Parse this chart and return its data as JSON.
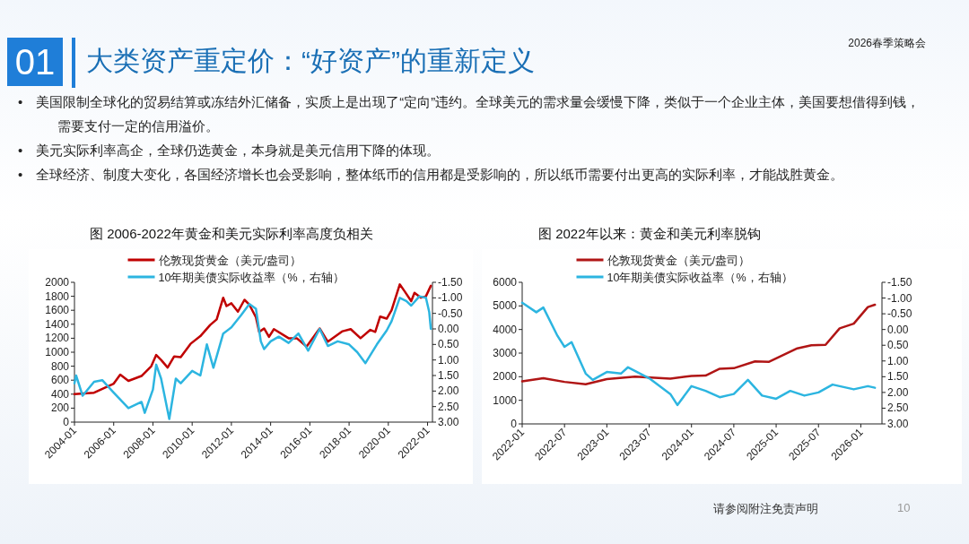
{
  "chart_data": [
    {
      "type": "other",
      "title": "大类资产重定价：“好资产”的重新定义",
      "annotations": [
        "01",
        "2026春季策略会",
        "•　美国限制全球化的贸易结算或冻结外汇储备，实质上是出现了“定向”违约。全球美元的需求量会缓慢下降，类似于一个企业主体，美国要想借得到钱，需要支付一定的信用溢价。",
        "•　美元实际利率高企，全球仍选黄金，本身就是美元信用下降的体现。",
        "•　全球经济、制度大变化，各国经济增长也会受影响，整体纸币的信用都是受影响的，所以纸币需要付出更高的实际利率，才能战胜黄金。",
        "请参阅附注免责声明",
        "10"
      ]
    },
    {
      "type": "line",
      "title": "图 2006-2022年黄金和美元实际利率高度负相关",
      "legend": "top",
      "xlim": [
        "2004-01",
        "2022-04"
      ],
      "xticks": [
        "2004-01",
        "2006-01",
        "2008-01",
        "2010-01",
        "2012-01",
        "2014-01",
        "2016-01",
        "2018-01",
        "2020-01",
        "2022-01"
      ],
      "ylim": [
        0,
        2000
      ],
      "yticks": [
        0,
        200,
        400,
        600,
        800,
        1000,
        1200,
        1400,
        1600,
        1800,
        2000
      ],
      "y2lim": [
        3,
        -1.5
      ],
      "y2ticks": [
        {
          "value": -1.5,
          "label": "-1.50"
        },
        {
          "value": -1,
          "label": "-1.00"
        },
        {
          "value": -0.5,
          "label": "-0.50"
        },
        {
          "value": 0,
          "label": "0.00"
        },
        {
          "value": 0.5,
          "label": "0.50"
        },
        {
          "value": 1,
          "label": "1.00"
        },
        {
          "value": 1.5,
          "label": "1.50"
        },
        {
          "value": 2,
          "label": "2.00"
        },
        {
          "value": 2.5,
          "label": "2.50"
        },
        {
          "value": 3,
          "label": "3.00"
        }
      ],
      "series": [
        {
          "name": "伦敦现货黄金（美元/盎司）",
          "color": "#c00000",
          "x": [
            "2004-01",
            "2005-01",
            "2006-01",
            "2006-05",
            "2006-10",
            "2007-06",
            "2007-12",
            "2008-03",
            "2008-06",
            "2008-10",
            "2009-02",
            "2009-06",
            "2009-12",
            "2010-06",
            "2010-12",
            "2011-04",
            "2011-08",
            "2011-10",
            "2012-01",
            "2012-05",
            "2012-09",
            "2012-12",
            "2013-04",
            "2013-06",
            "2013-09",
            "2013-12",
            "2014-03",
            "2014-12",
            "2015-05",
            "2015-11",
            "2016-07",
            "2016-12",
            "2017-09",
            "2018-02",
            "2018-08",
            "2019-02",
            "2019-05",
            "2019-08",
            "2019-12",
            "2020-03",
            "2020-08",
            "2020-11",
            "2021-03",
            "2021-05",
            "2021-09",
            "2021-12",
            "2022-03"
          ],
          "values": [
            400,
            420,
            550,
            680,
            590,
            660,
            800,
            960,
            890,
            780,
            940,
            930,
            1120,
            1230,
            1390,
            1470,
            1780,
            1660,
            1700,
            1580,
            1750,
            1680,
            1500,
            1290,
            1340,
            1220,
            1330,
            1200,
            1200,
            1080,
            1340,
            1150,
            1300,
            1330,
            1200,
            1320,
            1290,
            1510,
            1480,
            1600,
            1970,
            1870,
            1730,
            1850,
            1780,
            1800,
            1950
          ]
        },
        {
          "name": "10年期美债实际收益率（%，右轴）",
          "color": "#2cb5e0",
          "axis": "y2",
          "x": [
            "2004-01",
            "2004-02",
            "2004-06",
            "2005-01",
            "2005-06",
            "2006-01",
            "2006-10",
            "2007-06",
            "2007-08",
            "2008-01",
            "2008-03",
            "2008-06",
            "2008-11",
            "2009-03",
            "2009-06",
            "2010-01",
            "2010-06",
            "2010-10",
            "2011-02",
            "2011-08",
            "2012-01",
            "2012-07",
            "2012-12",
            "2013-04",
            "2013-07",
            "2013-09",
            "2014-01",
            "2014-06",
            "2014-12",
            "2015-06",
            "2015-12",
            "2016-07",
            "2016-12",
            "2017-06",
            "2018-01",
            "2018-06",
            "2018-11",
            "2019-06",
            "2019-12",
            "2020-03",
            "2020-08",
            "2020-12",
            "2021-03",
            "2021-08",
            "2021-12",
            "2022-02",
            "2022-03"
          ],
          "values": [
            1.75,
            1.5,
            2.15,
            1.7,
            1.65,
            2.05,
            2.55,
            2.35,
            2.7,
            1.95,
            1.15,
            1.6,
            2.9,
            1.6,
            1.75,
            1.35,
            1.5,
            0.5,
            1.25,
            0.15,
            -0.05,
            -0.45,
            -0.8,
            -0.65,
            0.4,
            0.65,
            0.4,
            0.25,
            0.45,
            0.15,
            0.7,
            0,
            0.55,
            0.4,
            0.5,
            0.75,
            1.1,
            0.5,
            0.05,
            -0.25,
            -1,
            -0.9,
            -0.75,
            -1.05,
            -1,
            -0.55,
            0
          ]
        }
      ]
    },
    {
      "type": "line",
      "title": "图 2022年以来：黄金和美元利率脱钩",
      "legend": "top",
      "xlim": [
        "2022-01",
        "2026-04"
      ],
      "xticks": [
        "2022-01",
        "2022-07",
        "2023-01",
        "2023-07",
        "2024-01",
        "2024-07",
        "2025-01",
        "2025-07",
        "2026-01"
      ],
      "ylim": [
        0,
        6000
      ],
      "yticks": [
        0,
        1000,
        2000,
        3000,
        4000,
        5000,
        6000
      ],
      "y2lim": [
        3,
        -1.5
      ],
      "y2ticks": [
        {
          "value": -1.5,
          "label": "-1.50"
        },
        {
          "value": -1,
          "label": "-1.00"
        },
        {
          "value": -0.5,
          "label": "-0.50"
        },
        {
          "value": 0,
          "label": "0.00"
        },
        {
          "value": 0.5,
          "label": "0.50"
        },
        {
          "value": 1,
          "label": "1.00"
        },
        {
          "value": 1.5,
          "label": "1.50"
        },
        {
          "value": 2,
          "label": "2.00"
        },
        {
          "value": 2.5,
          "label": "2.50"
        },
        {
          "value": 3,
          "label": "3.00"
        }
      ],
      "series": [
        {
          "name": "伦敦现货黄金（美元/盎司）",
          "color": "#b01515",
          "x": [
            "2022-01",
            "2022-04",
            "2022-07",
            "2022-10",
            "2023-01",
            "2023-05",
            "2023-10",
            "2024-01",
            "2024-03",
            "2024-05",
            "2024-07",
            "2024-10",
            "2024-12",
            "2025-04",
            "2025-06",
            "2025-08",
            "2025-10",
            "2025-12",
            "2026-02",
            "2026-03"
          ],
          "values": [
            1800,
            1940,
            1780,
            1680,
            1900,
            2000,
            1920,
            2030,
            2050,
            2340,
            2360,
            2650,
            2630,
            3200,
            3330,
            3350,
            4050,
            4250,
            4950,
            5050
          ]
        },
        {
          "name": "10年期美债实际收益率（%，右轴）",
          "color": "#2cb5e0",
          "axis": "y2",
          "x": [
            "2022-01",
            "2022-03",
            "2022-04",
            "2022-06",
            "2022-07",
            "2022-08",
            "2022-10",
            "2022-11",
            "2023-01",
            "2023-03",
            "2023-04",
            "2023-07",
            "2023-10",
            "2023-11",
            "2024-01",
            "2024-03",
            "2024-05",
            "2024-07",
            "2024-09",
            "2024-11",
            "2025-01",
            "2025-03",
            "2025-05",
            "2025-07",
            "2025-09",
            "2025-12",
            "2026-02",
            "2026-03"
          ],
          "values": [
            -0.85,
            -0.55,
            -0.7,
            0.2,
            0.55,
            0.4,
            1.4,
            1.6,
            1.35,
            1.4,
            1.2,
            1.55,
            2.05,
            2.4,
            1.8,
            1.95,
            2.15,
            2.05,
            1.6,
            2.1,
            2.2,
            1.95,
            2.1,
            2,
            1.75,
            1.9,
            1.8,
            1.85
          ]
        }
      ]
    }
  ]
}
